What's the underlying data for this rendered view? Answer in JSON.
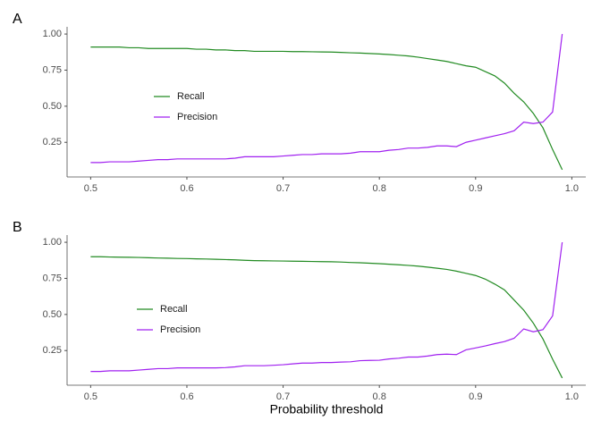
{
  "chart_data": [
    {
      "type": "line",
      "panel_label": "A",
      "x": [
        0.5,
        0.51,
        0.52,
        0.53,
        0.54,
        0.55,
        0.56,
        0.57,
        0.58,
        0.59,
        0.6,
        0.61,
        0.62,
        0.63,
        0.64,
        0.65,
        0.66,
        0.67,
        0.68,
        0.69,
        0.7,
        0.71,
        0.72,
        0.73,
        0.74,
        0.75,
        0.76,
        0.77,
        0.78,
        0.79,
        0.8,
        0.81,
        0.82,
        0.83,
        0.84,
        0.85,
        0.86,
        0.87,
        0.88,
        0.89,
        0.9,
        0.91,
        0.92,
        0.93,
        0.94,
        0.95,
        0.96,
        0.97,
        0.98,
        0.99
      ],
      "series": [
        {
          "name": "Recall",
          "color": "#228b22",
          "values": [
            0.91,
            0.91,
            0.91,
            0.91,
            0.905,
            0.905,
            0.9,
            0.9,
            0.9,
            0.9,
            0.9,
            0.895,
            0.895,
            0.89,
            0.89,
            0.885,
            0.885,
            0.88,
            0.88,
            0.88,
            0.88,
            0.878,
            0.878,
            0.877,
            0.876,
            0.875,
            0.873,
            0.87,
            0.868,
            0.865,
            0.862,
            0.858,
            0.853,
            0.848,
            0.84,
            0.83,
            0.82,
            0.81,
            0.795,
            0.78,
            0.77,
            0.74,
            0.71,
            0.66,
            0.59,
            0.53,
            0.45,
            0.35,
            0.2,
            0.06
          ]
        },
        {
          "name": "Precision",
          "color": "#a020f0",
          "values": [
            0.11,
            0.11,
            0.115,
            0.115,
            0.115,
            0.12,
            0.125,
            0.13,
            0.13,
            0.135,
            0.135,
            0.135,
            0.135,
            0.135,
            0.135,
            0.14,
            0.15,
            0.15,
            0.15,
            0.15,
            0.155,
            0.16,
            0.165,
            0.165,
            0.17,
            0.17,
            0.17,
            0.175,
            0.185,
            0.185,
            0.185,
            0.195,
            0.2,
            0.21,
            0.21,
            0.215,
            0.225,
            0.225,
            0.22,
            0.25,
            0.265,
            0.28,
            0.295,
            0.31,
            0.33,
            0.39,
            0.38,
            0.39,
            0.46,
            1.0
          ]
        }
      ],
      "xlim": [
        0.4755,
        1.0145
      ],
      "xticks": [
        0.5,
        0.6,
        0.7,
        0.8,
        0.9,
        {
          "value": 1,
          "label": "1.0"
        }
      ],
      "ylim": [
        0.01,
        1.05
      ],
      "yticks": [
        0.25,
        {
          "value": 0.5,
          "label": "0.50"
        },
        0.75,
        {
          "value": 1,
          "label": "1.00"
        }
      ]
    },
    {
      "type": "line",
      "panel_label": "B",
      "x_label": "Probability threshold",
      "x": [
        0.5,
        0.51,
        0.52,
        0.53,
        0.54,
        0.55,
        0.56,
        0.57,
        0.58,
        0.59,
        0.6,
        0.61,
        0.62,
        0.63,
        0.64,
        0.65,
        0.66,
        0.67,
        0.68,
        0.69,
        0.7,
        0.71,
        0.72,
        0.73,
        0.74,
        0.75,
        0.76,
        0.77,
        0.78,
        0.79,
        0.8,
        0.81,
        0.82,
        0.83,
        0.84,
        0.85,
        0.86,
        0.87,
        0.88,
        0.89,
        0.9,
        0.91,
        0.92,
        0.93,
        0.94,
        0.95,
        0.96,
        0.97,
        0.98,
        0.99
      ],
      "series": [
        {
          "name": "Recall",
          "color": "#228b22",
          "values": [
            0.9,
            0.9,
            0.898,
            0.897,
            0.896,
            0.895,
            0.893,
            0.891,
            0.89,
            0.888,
            0.887,
            0.885,
            0.884,
            0.882,
            0.88,
            0.878,
            0.875,
            0.873,
            0.872,
            0.871,
            0.87,
            0.869,
            0.868,
            0.867,
            0.866,
            0.865,
            0.863,
            0.86,
            0.858,
            0.855,
            0.852,
            0.848,
            0.844,
            0.84,
            0.835,
            0.828,
            0.82,
            0.812,
            0.8,
            0.785,
            0.77,
            0.745,
            0.71,
            0.67,
            0.6,
            0.53,
            0.44,
            0.33,
            0.19,
            0.06
          ]
        },
        {
          "name": "Precision",
          "color": "#a020f0",
          "values": [
            0.105,
            0.105,
            0.11,
            0.11,
            0.11,
            0.115,
            0.12,
            0.125,
            0.125,
            0.13,
            0.13,
            0.13,
            0.13,
            0.13,
            0.132,
            0.137,
            0.145,
            0.145,
            0.145,
            0.148,
            0.152,
            0.158,
            0.163,
            0.163,
            0.167,
            0.167,
            0.17,
            0.172,
            0.18,
            0.182,
            0.183,
            0.192,
            0.197,
            0.205,
            0.205,
            0.212,
            0.222,
            0.225,
            0.222,
            0.255,
            0.268,
            0.282,
            0.298,
            0.312,
            0.335,
            0.4,
            0.38,
            0.395,
            0.49,
            1.0
          ]
        }
      ],
      "xlim": [
        0.4755,
        1.0145
      ],
      "xticks": [
        0.5,
        0.6,
        0.7,
        0.8,
        0.9,
        {
          "value": 1,
          "label": "1.0"
        }
      ],
      "ylim": [
        0.01,
        1.05
      ],
      "yticks": [
        0.25,
        {
          "value": 0.5,
          "label": "0.50"
        },
        0.75,
        {
          "value": 1,
          "label": "1.00"
        }
      ]
    }
  ]
}
